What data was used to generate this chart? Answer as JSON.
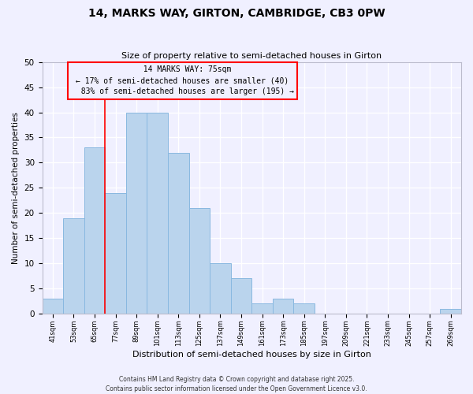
{
  "title": "14, MARKS WAY, GIRTON, CAMBRIDGE, CB3 0PW",
  "subtitle": "Size of property relative to semi-detached houses in Girton",
  "xlabel": "Distribution of semi-detached houses by size in Girton",
  "ylabel": "Number of semi-detached properties",
  "bin_edges": [
    41,
    53,
    65,
    77,
    89,
    101,
    113,
    125,
    137,
    149,
    161,
    173,
    185,
    197,
    209,
    221,
    233,
    245,
    257,
    269,
    281
  ],
  "counts": [
    3,
    19,
    33,
    24,
    40,
    40,
    32,
    21,
    10,
    7,
    2,
    3,
    2,
    0,
    0,
    0,
    0,
    0,
    0,
    1
  ],
  "bar_color": "#bad4ed",
  "bar_edgecolor": "#89b8e0",
  "property_line_x": 77,
  "property_size": "75sqm",
  "property_name": "14 MARKS WAY",
  "pct_smaller": 17,
  "count_smaller": 40,
  "pct_larger": 83,
  "count_larger": 195,
  "ylim": [
    0,
    50
  ],
  "annotation_box_edgecolor": "red",
  "annotation_line_color": "red",
  "background_color": "#f0f0ff",
  "grid_color": "#ffffff",
  "footer_line1": "Contains HM Land Registry data © Crown copyright and database right 2025.",
  "footer_line2": "Contains public sector information licensed under the Open Government Licence v3.0."
}
